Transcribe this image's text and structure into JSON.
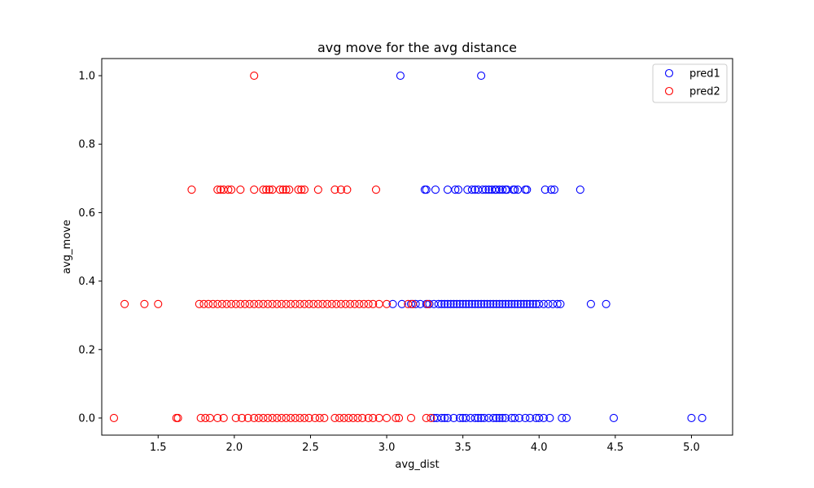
{
  "chart_data": {
    "type": "scatter",
    "title": "avg move for the avg distance",
    "xlabel": "avg_dist",
    "ylabel": "avg_move",
    "xlim": [
      1.13,
      5.27
    ],
    "ylim": [
      -0.05,
      1.05
    ],
    "xticks": [
      1.5,
      2.0,
      2.5,
      3.0,
      3.5,
      4.0,
      4.5,
      5.0
    ],
    "yticks": [
      0.0,
      0.2,
      0.4,
      0.6,
      0.8,
      1.0
    ],
    "grid": false,
    "legend_position": "top-right",
    "series": [
      {
        "name": "pred1",
        "color": "#0000ff",
        "points": [
          [
            3.09,
            1.0
          ],
          [
            3.62,
            1.0
          ],
          [
            3.25,
            0.667
          ],
          [
            3.26,
            0.667
          ],
          [
            3.32,
            0.667
          ],
          [
            3.4,
            0.667
          ],
          [
            3.45,
            0.667
          ],
          [
            3.47,
            0.667
          ],
          [
            3.53,
            0.667
          ],
          [
            3.56,
            0.667
          ],
          [
            3.58,
            0.667
          ],
          [
            3.6,
            0.667
          ],
          [
            3.63,
            0.667
          ],
          [
            3.65,
            0.667
          ],
          [
            3.67,
            0.667
          ],
          [
            3.69,
            0.667
          ],
          [
            3.71,
            0.667
          ],
          [
            3.72,
            0.667
          ],
          [
            3.74,
            0.667
          ],
          [
            3.76,
            0.667
          ],
          [
            3.78,
            0.667
          ],
          [
            3.79,
            0.667
          ],
          [
            3.83,
            0.667
          ],
          [
            3.84,
            0.667
          ],
          [
            3.86,
            0.667
          ],
          [
            3.91,
            0.667
          ],
          [
            3.92,
            0.667
          ],
          [
            4.04,
            0.667
          ],
          [
            4.08,
            0.667
          ],
          [
            4.1,
            0.667
          ],
          [
            4.27,
            0.667
          ],
          [
            3.04,
            0.333
          ],
          [
            3.1,
            0.333
          ],
          [
            3.16,
            0.333
          ],
          [
            3.19,
            0.333
          ],
          [
            3.22,
            0.333
          ],
          [
            3.26,
            0.333
          ],
          [
            3.28,
            0.333
          ],
          [
            3.31,
            0.333
          ],
          [
            3.34,
            0.333
          ],
          [
            3.36,
            0.333
          ],
          [
            3.38,
            0.333
          ],
          [
            3.4,
            0.333
          ],
          [
            3.42,
            0.333
          ],
          [
            3.44,
            0.333
          ],
          [
            3.46,
            0.333
          ],
          [
            3.48,
            0.333
          ],
          [
            3.5,
            0.333
          ],
          [
            3.52,
            0.333
          ],
          [
            3.54,
            0.333
          ],
          [
            3.56,
            0.333
          ],
          [
            3.58,
            0.333
          ],
          [
            3.6,
            0.333
          ],
          [
            3.62,
            0.333
          ],
          [
            3.64,
            0.333
          ],
          [
            3.66,
            0.333
          ],
          [
            3.68,
            0.333
          ],
          [
            3.7,
            0.333
          ],
          [
            3.72,
            0.333
          ],
          [
            3.74,
            0.333
          ],
          [
            3.76,
            0.333
          ],
          [
            3.78,
            0.333
          ],
          [
            3.8,
            0.333
          ],
          [
            3.82,
            0.333
          ],
          [
            3.84,
            0.333
          ],
          [
            3.86,
            0.333
          ],
          [
            3.88,
            0.333
          ],
          [
            3.9,
            0.333
          ],
          [
            3.92,
            0.333
          ],
          [
            3.94,
            0.333
          ],
          [
            3.96,
            0.333
          ],
          [
            3.98,
            0.333
          ],
          [
            4.0,
            0.333
          ],
          [
            4.03,
            0.333
          ],
          [
            4.06,
            0.333
          ],
          [
            4.09,
            0.333
          ],
          [
            4.12,
            0.333
          ],
          [
            4.14,
            0.333
          ],
          [
            4.34,
            0.333
          ],
          [
            4.44,
            0.333
          ],
          [
            3.31,
            0.0
          ],
          [
            3.33,
            0.0
          ],
          [
            3.36,
            0.0
          ],
          [
            3.38,
            0.0
          ],
          [
            3.4,
            0.0
          ],
          [
            3.44,
            0.0
          ],
          [
            3.48,
            0.0
          ],
          [
            3.5,
            0.0
          ],
          [
            3.52,
            0.0
          ],
          [
            3.55,
            0.0
          ],
          [
            3.58,
            0.0
          ],
          [
            3.6,
            0.0
          ],
          [
            3.62,
            0.0
          ],
          [
            3.64,
            0.0
          ],
          [
            3.67,
            0.0
          ],
          [
            3.7,
            0.0
          ],
          [
            3.72,
            0.0
          ],
          [
            3.74,
            0.0
          ],
          [
            3.76,
            0.0
          ],
          [
            3.78,
            0.0
          ],
          [
            3.82,
            0.0
          ],
          [
            3.84,
            0.0
          ],
          [
            3.87,
            0.0
          ],
          [
            3.91,
            0.0
          ],
          [
            3.94,
            0.0
          ],
          [
            3.98,
            0.0
          ],
          [
            4.0,
            0.0
          ],
          [
            4.03,
            0.0
          ],
          [
            4.07,
            0.0
          ],
          [
            4.15,
            0.0
          ],
          [
            4.18,
            0.0
          ],
          [
            4.49,
            0.0
          ],
          [
            5.0,
            0.0
          ],
          [
            5.07,
            0.0
          ]
        ]
      },
      {
        "name": "pred2",
        "color": "#ff0000",
        "points": [
          [
            2.13,
            1.0
          ],
          [
            1.72,
            0.667
          ],
          [
            1.89,
            0.667
          ],
          [
            1.91,
            0.667
          ],
          [
            1.93,
            0.667
          ],
          [
            1.96,
            0.667
          ],
          [
            1.98,
            0.667
          ],
          [
            2.04,
            0.667
          ],
          [
            2.13,
            0.667
          ],
          [
            2.19,
            0.667
          ],
          [
            2.21,
            0.667
          ],
          [
            2.23,
            0.667
          ],
          [
            2.25,
            0.667
          ],
          [
            2.3,
            0.667
          ],
          [
            2.32,
            0.667
          ],
          [
            2.34,
            0.667
          ],
          [
            2.36,
            0.667
          ],
          [
            2.42,
            0.667
          ],
          [
            2.44,
            0.667
          ],
          [
            2.46,
            0.667
          ],
          [
            2.55,
            0.667
          ],
          [
            2.66,
            0.667
          ],
          [
            2.7,
            0.667
          ],
          [
            2.74,
            0.667
          ],
          [
            2.93,
            0.667
          ],
          [
            1.28,
            0.333
          ],
          [
            1.41,
            0.333
          ],
          [
            1.5,
            0.333
          ],
          [
            1.77,
            0.333
          ],
          [
            1.8,
            0.333
          ],
          [
            1.83,
            0.333
          ],
          [
            1.86,
            0.333
          ],
          [
            1.89,
            0.333
          ],
          [
            1.92,
            0.333
          ],
          [
            1.95,
            0.333
          ],
          [
            1.98,
            0.333
          ],
          [
            2.01,
            0.333
          ],
          [
            2.04,
            0.333
          ],
          [
            2.07,
            0.333
          ],
          [
            2.1,
            0.333
          ],
          [
            2.13,
            0.333
          ],
          [
            2.16,
            0.333
          ],
          [
            2.19,
            0.333
          ],
          [
            2.22,
            0.333
          ],
          [
            2.25,
            0.333
          ],
          [
            2.28,
            0.333
          ],
          [
            2.31,
            0.333
          ],
          [
            2.34,
            0.333
          ],
          [
            2.37,
            0.333
          ],
          [
            2.4,
            0.333
          ],
          [
            2.43,
            0.333
          ],
          [
            2.46,
            0.333
          ],
          [
            2.49,
            0.333
          ],
          [
            2.52,
            0.333
          ],
          [
            2.55,
            0.333
          ],
          [
            2.58,
            0.333
          ],
          [
            2.61,
            0.333
          ],
          [
            2.64,
            0.333
          ],
          [
            2.67,
            0.333
          ],
          [
            2.7,
            0.333
          ],
          [
            2.73,
            0.333
          ],
          [
            2.76,
            0.333
          ],
          [
            2.79,
            0.333
          ],
          [
            2.82,
            0.333
          ],
          [
            2.85,
            0.333
          ],
          [
            2.88,
            0.333
          ],
          [
            2.91,
            0.333
          ],
          [
            2.95,
            0.333
          ],
          [
            3.0,
            0.333
          ],
          [
            3.14,
            0.333
          ],
          [
            3.17,
            0.333
          ],
          [
            3.27,
            0.333
          ],
          [
            1.21,
            0.0
          ],
          [
            1.62,
            0.0
          ],
          [
            1.63,
            0.0
          ],
          [
            1.78,
            0.0
          ],
          [
            1.81,
            0.0
          ],
          [
            1.84,
            0.0
          ],
          [
            1.89,
            0.0
          ],
          [
            1.93,
            0.0
          ],
          [
            2.01,
            0.0
          ],
          [
            2.05,
            0.0
          ],
          [
            2.09,
            0.0
          ],
          [
            2.13,
            0.0
          ],
          [
            2.16,
            0.0
          ],
          [
            2.19,
            0.0
          ],
          [
            2.22,
            0.0
          ],
          [
            2.25,
            0.0
          ],
          [
            2.28,
            0.0
          ],
          [
            2.31,
            0.0
          ],
          [
            2.34,
            0.0
          ],
          [
            2.37,
            0.0
          ],
          [
            2.4,
            0.0
          ],
          [
            2.43,
            0.0
          ],
          [
            2.46,
            0.0
          ],
          [
            2.49,
            0.0
          ],
          [
            2.53,
            0.0
          ],
          [
            2.56,
            0.0
          ],
          [
            2.59,
            0.0
          ],
          [
            2.66,
            0.0
          ],
          [
            2.69,
            0.0
          ],
          [
            2.72,
            0.0
          ],
          [
            2.75,
            0.0
          ],
          [
            2.78,
            0.0
          ],
          [
            2.81,
            0.0
          ],
          [
            2.84,
            0.0
          ],
          [
            2.88,
            0.0
          ],
          [
            2.91,
            0.0
          ],
          [
            2.95,
            0.0
          ],
          [
            3.0,
            0.0
          ],
          [
            3.06,
            0.0
          ],
          [
            3.08,
            0.0
          ],
          [
            3.16,
            0.0
          ],
          [
            3.26,
            0.0
          ],
          [
            3.29,
            0.0
          ]
        ]
      }
    ]
  }
}
